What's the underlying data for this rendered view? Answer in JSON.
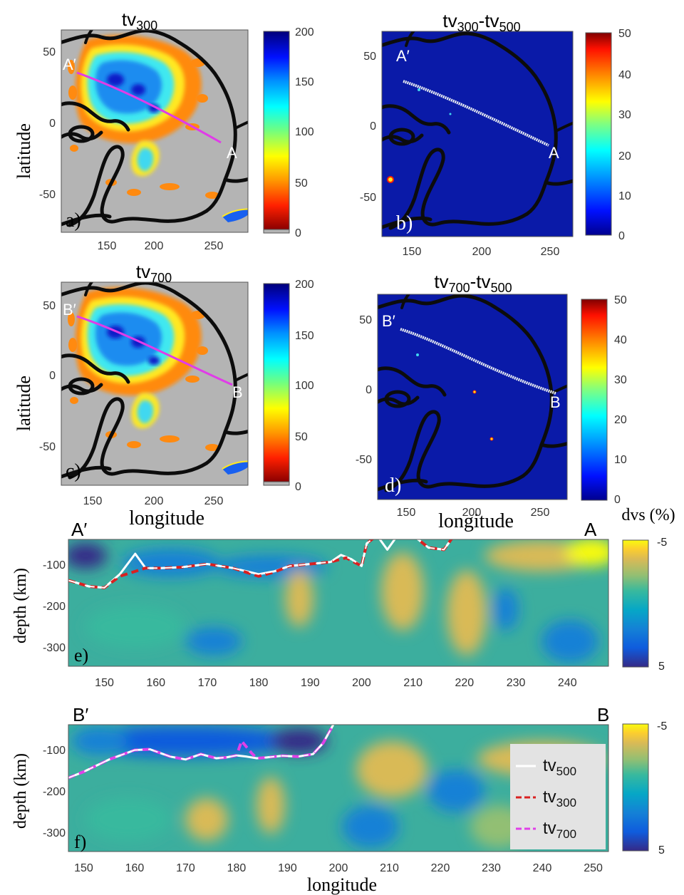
{
  "colors": {
    "map_gray": "#b4b4b4",
    "map_navy": "#0a1aa8",
    "outline": "#0c0c0c",
    "profile_magenta": "#e03ce8",
    "profile_white": "#e8ecf2",
    "line_white": "#ffffff",
    "line_red": "#d92020",
    "line_magenta": "#e040e8",
    "legend_bg": "#e3e3e3"
  },
  "maps": {
    "a": {
      "title": "tv",
      "title_sub": "300",
      "panel_label": "a)",
      "ylabel": "latitude",
      "xticks": [
        "150",
        "200",
        "250"
      ],
      "yticks": [
        "50",
        "0",
        "-50"
      ],
      "profile_start_label": "A′",
      "profile_end_label": "A",
      "colorbar_ticks": [
        "200",
        "150",
        "100",
        "50",
        "0"
      ],
      "colorbar_range": [
        0,
        200
      ],
      "colormap": "jet-reversed"
    },
    "b": {
      "title": "tv",
      "title_sub": "300",
      "title2": "-tv",
      "title2_sub": "500",
      "panel_label": "b)",
      "xticks": [
        "150",
        "200",
        "250"
      ],
      "yticks": [
        "50",
        "0",
        "-50"
      ],
      "profile_start_label": "A′",
      "profile_end_label": "A",
      "colorbar_ticks": [
        "50",
        "40",
        "30",
        "20",
        "10",
        "0"
      ],
      "colorbar_range": [
        0,
        50
      ],
      "colormap": "jet"
    },
    "c": {
      "title": "tv",
      "title_sub": "700",
      "panel_label": "c)",
      "ylabel": "latitude",
      "xlabel": "longitude",
      "xticks": [
        "150",
        "200",
        "250"
      ],
      "yticks": [
        "50",
        "0",
        "-50"
      ],
      "profile_start_label": "B′",
      "profile_end_label": "B",
      "colorbar_ticks": [
        "200",
        "150",
        "100",
        "50",
        "0"
      ],
      "colorbar_range": [
        0,
        200
      ],
      "colormap": "jet-reversed"
    },
    "d": {
      "title": "tv",
      "title_sub": "700",
      "title2": "-tv",
      "title2_sub": "500",
      "panel_label": "d)",
      "xlabel": "longitude",
      "xticks": [
        "150",
        "200",
        "250"
      ],
      "yticks": [
        "50",
        "0",
        "-50"
      ],
      "profile_start_label": "B′",
      "profile_end_label": "B",
      "colorbar_ticks": [
        "50",
        "40",
        "30",
        "20",
        "10",
        "0"
      ],
      "colorbar_range": [
        0,
        50
      ],
      "colormap": "jet"
    }
  },
  "sections": {
    "colorbar_title": "dvs (%)",
    "e": {
      "panel_label": "e)",
      "ylabel": "depth (km)",
      "start_label": "A′",
      "end_label": "A",
      "xticks": [
        "150",
        "160",
        "170",
        "180",
        "190",
        "200",
        "210",
        "220",
        "230",
        "240"
      ],
      "yticks": [
        "-100",
        "-200",
        "-300"
      ],
      "colorbar_ticks": [
        "-5",
        "5"
      ]
    },
    "f": {
      "panel_label": "f)",
      "ylabel": "depth (km)",
      "xlabel": "longitude",
      "start_label": "B′",
      "end_label": "B",
      "xticks": [
        "150",
        "160",
        "170",
        "180",
        "190",
        "200",
        "210",
        "220",
        "230",
        "240",
        "250"
      ],
      "yticks": [
        "-100",
        "-200",
        "-300"
      ],
      "colorbar_ticks": [
        "-5",
        "5"
      ],
      "legend": [
        {
          "base": "tv",
          "sub": "500",
          "color": "#ffffff",
          "style": "solid"
        },
        {
          "base": "tv",
          "sub": "300",
          "color": "#d92020",
          "style": "dashed"
        },
        {
          "base": "tv",
          "sub": "700",
          "color": "#e040e8",
          "style": "dashed"
        }
      ]
    }
  },
  "chart_data": [
    {
      "type": "line",
      "panel": "e",
      "xlim": [
        143,
        248
      ],
      "ylim": [
        -350,
        -40
      ],
      "series": [
        {
          "name": "tv500",
          "x": [
            143,
            147,
            150,
            153,
            156,
            158,
            161,
            165,
            170,
            175,
            180,
            183,
            186,
            190,
            194,
            196,
            198,
            200,
            201,
            203,
            205,
            207,
            210,
            213,
            216,
            218
          ],
          "y": [
            -140,
            -155,
            -158,
            -125,
            -75,
            -110,
            -110,
            -108,
            -100,
            -110,
            -125,
            -118,
            -105,
            -100,
            -95,
            -78,
            -88,
            -105,
            -50,
            -30,
            -65,
            -30,
            -30,
            -60,
            -65,
            -30
          ]
        },
        {
          "name": "tv300",
          "x": [
            143,
            147,
            150,
            153,
            158,
            161,
            165,
            170,
            175,
            180,
            183,
            186,
            190,
            194,
            197,
            200,
            201,
            203,
            210,
            213,
            216,
            218
          ],
          "y": [
            -140,
            -155,
            -158,
            -130,
            -110,
            -110,
            -108,
            -100,
            -110,
            -130,
            -120,
            -105,
            -100,
            -95,
            -85,
            -105,
            -50,
            -30,
            -30,
            -60,
            -65,
            -30
          ]
        }
      ]
    },
    {
      "type": "line",
      "panel": "f",
      "xlim": [
        147,
        253
      ],
      "ylim": [
        -350,
        -40
      ],
      "series": [
        {
          "name": "tv500",
          "x": [
            147,
            150,
            155,
            160,
            163,
            167,
            170,
            173,
            176,
            178,
            180,
            182,
            184,
            186,
            189,
            192,
            195,
            197,
            199
          ],
          "y": [
            -170,
            -155,
            -125,
            -102,
            -100,
            -118,
            -125,
            -112,
            -122,
            -120,
            -115,
            -118,
            -122,
            -120,
            -116,
            -118,
            -112,
            -85,
            -40
          ]
        },
        {
          "name": "tv700",
          "x": [
            147,
            150,
            155,
            160,
            163,
            167,
            170,
            173,
            176,
            178,
            180,
            181,
            183,
            184,
            186,
            189,
            192,
            195,
            197,
            199
          ],
          "y": [
            -170,
            -155,
            -125,
            -102,
            -100,
            -118,
            -125,
            -112,
            -122,
            -120,
            -115,
            -80,
            -110,
            -122,
            -120,
            -116,
            -118,
            -112,
            -85,
            -40
          ]
        }
      ]
    }
  ]
}
